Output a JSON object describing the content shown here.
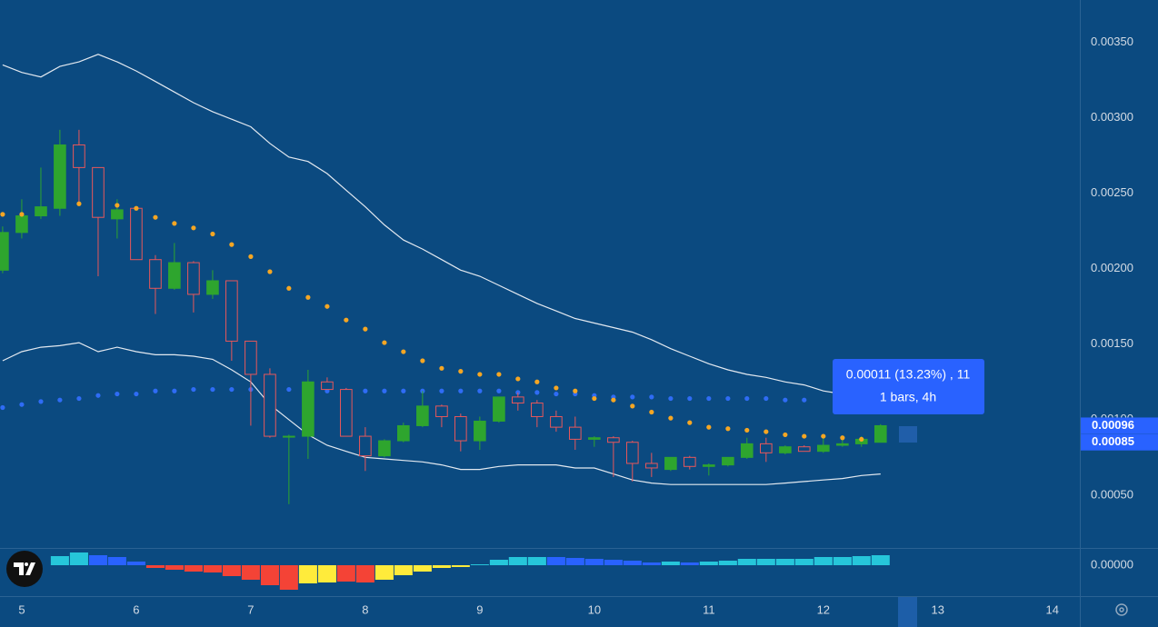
{
  "chart_data": {
    "type": "candlestick",
    "x": [
      4.833,
      5,
      5.167,
      5.333,
      5.5,
      5.667,
      5.833,
      6,
      6.167,
      6.333,
      6.5,
      6.667,
      6.833,
      7,
      7.167,
      7.333,
      7.5,
      7.667,
      7.833,
      8,
      8.167,
      8.333,
      8.5,
      8.667,
      8.833,
      9,
      9.167,
      9.333,
      9.5,
      9.667,
      9.833,
      10,
      10.167,
      10.333,
      10.5,
      10.667,
      10.833,
      11,
      11.167,
      11.333,
      11.5,
      11.667,
      11.833,
      12,
      12.167,
      12.333,
      12.5
    ],
    "open": [
      0.00199,
      0.00224,
      0.00235,
      0.0024,
      0.00282,
      0.00267,
      0.00233,
      0.0024,
      0.00206,
      0.00187,
      0.00204,
      0.00183,
      0.00192,
      0.00152,
      0.0013,
      0.00089,
      0.00089,
      0.00125,
      0.0012,
      0.00089,
      0.00076,
      0.00086,
      0.00096,
      0.00109,
      0.00102,
      0.00086,
      0.00099,
      0.00115,
      0.00111,
      0.00102,
      0.00095,
      0.00087,
      0.00088,
      0.00085,
      0.00071,
      0.00067,
      0.00075,
      0.00069,
      0.0007,
      0.00075,
      0.00084,
      0.00078,
      0.00082,
      0.00079,
      0.00083,
      0.00084,
      0.00085
    ],
    "high": [
      0.00228,
      0.00246,
      0.00267,
      0.00292,
      0.00292,
      0.00267,
      0.00246,
      0.00241,
      0.00209,
      0.00217,
      0.00205,
      0.00199,
      0.00192,
      0.00152,
      0.00134,
      0.0009,
      0.00133,
      0.00128,
      0.00121,
      0.00095,
      0.00087,
      0.00098,
      0.00119,
      0.0011,
      0.00104,
      0.00102,
      0.00115,
      0.00118,
      0.00113,
      0.00106,
      0.00102,
      0.00089,
      0.00089,
      0.00086,
      0.00078,
      0.00075,
      0.00076,
      0.00071,
      0.00075,
      0.00088,
      0.00088,
      0.00083,
      0.00083,
      0.00088,
      0.00087,
      0.00089,
      0.00097
    ],
    "low": [
      0.00197,
      0.0022,
      0.00233,
      0.00235,
      0.00243,
      0.00195,
      0.0022,
      0.00206,
      0.0017,
      0.00186,
      0.00171,
      0.0018,
      0.00139,
      0.00096,
      0.00088,
      0.00044,
      0.00074,
      0.0012,
      0.00089,
      0.00066,
      0.00075,
      0.00085,
      0.00095,
      0.00095,
      0.00079,
      0.0008,
      0.00098,
      0.00106,
      0.00095,
      0.00092,
      0.0008,
      0.00082,
      0.00062,
      0.00059,
      0.00062,
      0.00066,
      0.00067,
      0.00063,
      0.00069,
      0.00074,
      0.00072,
      0.00077,
      0.00079,
      0.00078,
      0.00082,
      0.00082,
      0.00085
    ],
    "close": [
      0.00224,
      0.00235,
      0.00241,
      0.00282,
      0.00267,
      0.00234,
      0.00239,
      0.00206,
      0.00187,
      0.00204,
      0.00183,
      0.00192,
      0.00152,
      0.0013,
      0.00089,
      0.00089,
      0.00125,
      0.0012,
      0.00089,
      0.00076,
      0.00086,
      0.00096,
      0.00109,
      0.00102,
      0.00086,
      0.00099,
      0.00115,
      0.00111,
      0.00102,
      0.00095,
      0.00087,
      0.00088,
      0.00085,
      0.00071,
      0.00068,
      0.00075,
      0.00069,
      0.0007,
      0.00075,
      0.00084,
      0.00078,
      0.00082,
      0.00079,
      0.00083,
      0.00084,
      0.00087,
      0.00096
    ],
    "up_color": "#2ea52e",
    "down_color": "#e8575a",
    "overlays": [
      {
        "style": "line",
        "color": "#e3e9f0",
        "values": [
          0.00335,
          0.0033,
          0.00327,
          0.00334,
          0.00337,
          0.00342,
          0.00337,
          0.00331,
          0.00324,
          0.00317,
          0.0031,
          0.00304,
          0.00299,
          0.00294,
          0.00283,
          0.00274,
          0.00271,
          0.00263,
          0.00252,
          0.00241,
          0.00229,
          0.00219,
          0.00213,
          0.00206,
          0.00199,
          0.00195,
          0.00189,
          0.00183,
          0.00177,
          0.00172,
          0.00167,
          0.00164,
          0.00161,
          0.00158,
          0.00153,
          0.00147,
          0.00142,
          0.00137,
          0.00133,
          0.0013,
          0.00128,
          0.00125,
          0.00123,
          0.00119,
          0.00117,
          0.00116,
          0.00113
        ]
      },
      {
        "style": "line",
        "color": "#e3e9f0",
        "values": [
          0.00139,
          0.00145,
          0.00148,
          0.00149,
          0.00151,
          0.00145,
          0.00148,
          0.00145,
          0.00143,
          0.00143,
          0.00142,
          0.0014,
          0.00133,
          0.00125,
          0.0011,
          0.001,
          0.0009,
          0.00083,
          0.00079,
          0.00075,
          0.00074,
          0.00073,
          0.00072,
          0.0007,
          0.00067,
          0.00067,
          0.00069,
          0.0007,
          0.0007,
          0.0007,
          0.00068,
          0.00068,
          0.00064,
          0.0006,
          0.00058,
          0.00057,
          0.00057,
          0.00057,
          0.00057,
          0.00057,
          0.00057,
          0.00058,
          0.00059,
          0.0006,
          0.00061,
          0.00063,
          0.00064
        ]
      },
      {
        "style": "dots",
        "color": "#2f6cf5",
        "values": [
          0.00108,
          0.0011,
          0.00112,
          0.00113,
          0.00114,
          0.00116,
          0.00117,
          0.00117,
          0.00119,
          0.00119,
          0.0012,
          0.0012,
          0.0012,
          0.0012,
          0.0012,
          0.0012,
          0.0012,
          0.00119,
          0.00119,
          0.00119,
          0.00119,
          0.00119,
          0.00119,
          0.00119,
          0.00119,
          0.00119,
          0.00119,
          0.00118,
          0.00118,
          0.00117,
          0.00117,
          0.00116,
          0.00115,
          0.00115,
          0.00115,
          0.00114,
          0.00114,
          0.00114,
          0.00114,
          0.00114,
          0.00114,
          0.00113,
          0.00113,
          null,
          null,
          null,
          null
        ]
      },
      {
        "style": "dots",
        "color": "#f5a623",
        "values": [
          0.00236,
          0.00236,
          null,
          null,
          0.00243,
          null,
          0.00242,
          0.0024,
          0.00234,
          0.0023,
          0.00227,
          0.00223,
          0.00216,
          0.00208,
          0.00198,
          0.00187,
          0.00181,
          0.00175,
          0.00166,
          0.0016,
          0.00151,
          0.00145,
          0.00139,
          0.00134,
          0.00132,
          0.0013,
          0.0013,
          0.00127,
          0.00125,
          0.00121,
          0.00119,
          0.00114,
          0.00113,
          0.00109,
          0.00105,
          0.00101,
          0.00098,
          0.00095,
          0.00094,
          0.00093,
          0.00092,
          0.0009,
          0.00089,
          0.00089,
          0.00088,
          0.00087,
          null
        ]
      }
    ],
    "xlim": [
      4.81,
      14.24
    ],
    "xticks": [
      5,
      6,
      7,
      8,
      9,
      10,
      11,
      12,
      13,
      14
    ],
    "ylim": [
      0.00015,
      0.00378
    ],
    "yticks": [
      {
        "value": 0.0035,
        "label": "0.00350"
      },
      {
        "value": 0.003,
        "label": "0.00300"
      },
      {
        "value": 0.0025,
        "label": "0.00250"
      },
      {
        "value": 0.002,
        "label": "0.00200"
      },
      {
        "value": 0.0015,
        "label": "0.00150"
      },
      {
        "value": 0.001,
        "label": "0.00100"
      },
      {
        "value": 0.0005,
        "label": "0.00050"
      }
    ],
    "price_labels": [
      0.00096,
      0.00085
    ],
    "price_label_color": "#2962ff",
    "tooltip": {
      "line1": "0.00011 (13.23%) , 11",
      "line2": "1 bars, 4h"
    },
    "histogram": {
      "values": [
        null,
        null,
        null,
        1e-05,
        1.4e-05,
        1.1e-05,
        9e-06,
        4e-06,
        -3e-06,
        -5e-06,
        -7e-06,
        -8e-06,
        -1.2e-05,
        -1.6e-05,
        -2.2e-05,
        -2.7e-05,
        -2e-05,
        -1.9e-05,
        -1.8e-05,
        -1.9e-05,
        -1.6e-05,
        -1.1e-05,
        -7e-06,
        -3e-06,
        -2e-06,
        1e-06,
        6e-06,
        9e-06,
        9e-06,
        9e-06,
        8e-06,
        7e-06,
        6e-06,
        5e-06,
        3e-06,
        4e-06,
        3e-06,
        4e-06,
        5e-06,
        7e-06,
        7e-06,
        7e-06,
        7e-06,
        9e-06,
        9e-06,
        1e-05,
        1.1e-05
      ],
      "colors": [
        null,
        null,
        null,
        "#26c6da",
        "#26c6da",
        "#2962ff",
        "#2962ff",
        "#2962ff",
        "#f44336",
        "#f44336",
        "#f44336",
        "#f44336",
        "#f44336",
        "#f44336",
        "#f44336",
        "#f44336",
        "#ffeb3b",
        "#ffeb3b",
        "#f44336",
        "#f44336",
        "#ffeb3b",
        "#ffeb3b",
        "#ffeb3b",
        "#ffeb3b",
        "#ffeb3b",
        "#26c6da",
        "#26c6da",
        "#26c6da",
        "#26c6da",
        "#2962ff",
        "#2962ff",
        "#2962ff",
        "#2962ff",
        "#2962ff",
        "#2962ff",
        "#26c6da",
        "#2962ff",
        "#26c6da",
        "#26c6da",
        "#26c6da",
        "#26c6da",
        "#26c6da",
        "#26c6da",
        "#26c6da",
        "#26c6da",
        "#26c6da",
        "#26c6da"
      ],
      "ylim": [
        -3.4e-05,
        1.7e-05
      ],
      "yticks": [
        {
          "value": 0,
          "label": "0.00000"
        }
      ]
    }
  }
}
